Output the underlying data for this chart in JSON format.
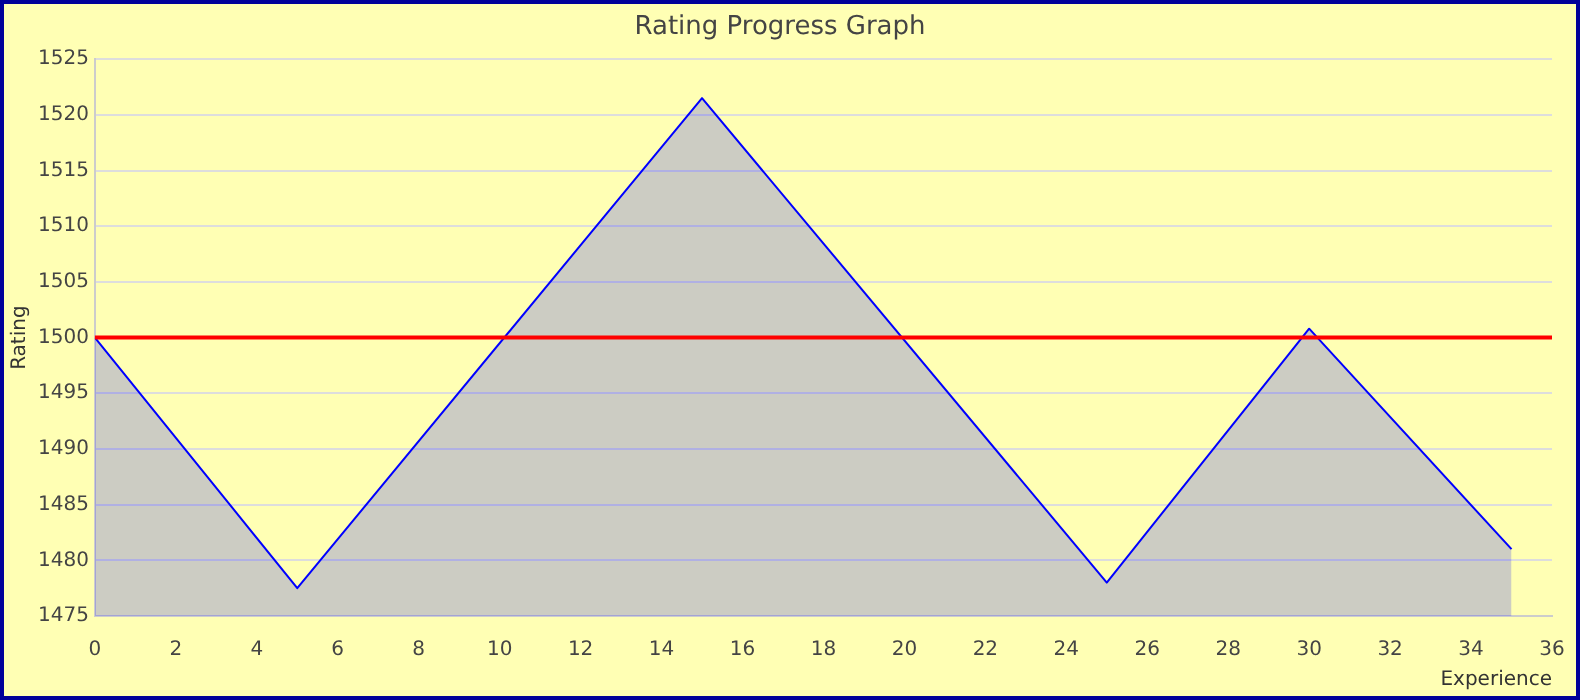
{
  "chart_data": {
    "type": "area",
    "title": "Rating Progress Graph",
    "xlabel": "Experience",
    "ylabel": "Rating",
    "x": [
      0,
      5,
      15,
      25,
      30,
      35
    ],
    "series": [
      {
        "color": "#0000ff",
        "values": [
          1500,
          1477.5,
          1521.5,
          1478,
          1500.8,
          1481
        ]
      }
    ],
    "xlim": [
      0,
      36
    ],
    "xticks": [
      0,
      2,
      4,
      6,
      8,
      10,
      12,
      14,
      16,
      18,
      20,
      22,
      24,
      26,
      28,
      30,
      32,
      34,
      36
    ],
    "ylim": [
      1475,
      1525
    ],
    "yticks": [
      1475,
      1480,
      1485,
      1490,
      1495,
      1500,
      1505,
      1510,
      1515,
      1520,
      1525
    ],
    "ref_lines": [
      {
        "axis": "y",
        "value": 1500,
        "color": "#ff0000"
      }
    ],
    "grid": "y",
    "legend": false,
    "marker": "none"
  }
}
